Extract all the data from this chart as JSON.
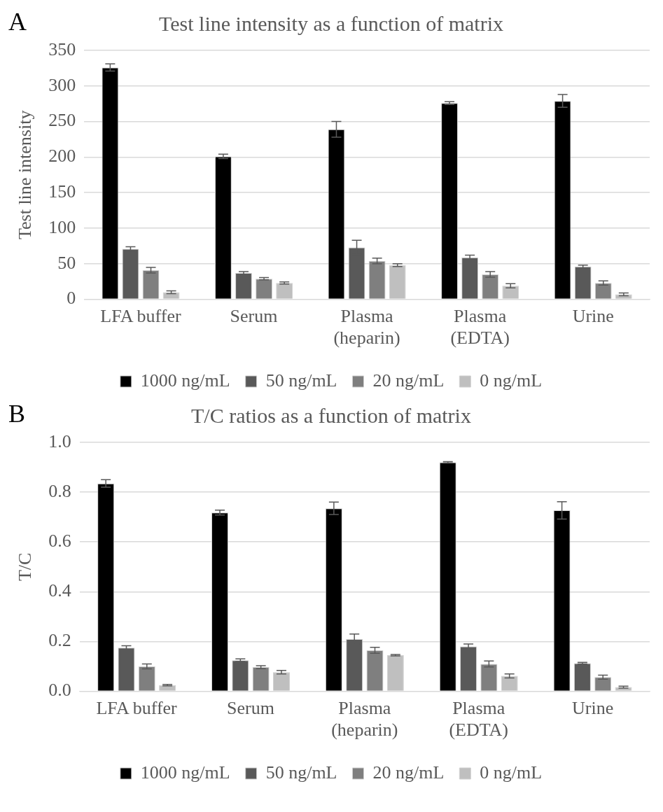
{
  "chart_data": [
    {
      "type": "bar",
      "title": "Test line intensity as a function of matrix",
      "ylabel": "Test line intensity",
      "annotations": [
        "A"
      ],
      "categories": [
        "LFA buffer",
        "Serum",
        "Plasma\n(heparin)",
        "Plasma\n(EDTA)",
        "Urine"
      ],
      "series": [
        {
          "name": "1000 ng/mL",
          "color": "#000000",
          "values": [
            326,
            201,
            239,
            276,
            279
          ],
          "errors": [
            5,
            3,
            11,
            2,
            9
          ]
        },
        {
          "name": "50 ng/mL",
          "color": "#595959",
          "values": [
            71,
            37,
            73,
            59,
            46
          ],
          "errors": [
            3,
            2,
            10,
            3,
            2
          ]
        },
        {
          "name": "20 ng/mL",
          "color": "#7f7f7f",
          "values": [
            41,
            29,
            54,
            35,
            23
          ],
          "errors": [
            4,
            1.5,
            4,
            4,
            3
          ]
        },
        {
          "name": "0 ng/mL",
          "color": "#bfbfbf",
          "values": [
            10,
            23,
            48,
            19,
            7
          ],
          "errors": [
            2,
            1.5,
            2,
            3,
            2
          ]
        }
      ],
      "ylim": [
        0,
        350
      ],
      "yticks": [
        0,
        50,
        100,
        150,
        200,
        250,
        300,
        350
      ],
      "grid": "y",
      "legend": "bottom"
    },
    {
      "type": "bar",
      "title": "T/C ratios as a function of matrix",
      "ylabel": "T/C",
      "annotations": [
        "B"
      ],
      "categories": [
        "LFA buffer",
        "Serum",
        "Plasma\n(heparin)",
        "Plasma\n(EDTA)",
        "Urine"
      ],
      "series": [
        {
          "name": "1000 ng/mL",
          "color": "#000000",
          "values": [
            0.835,
            0.718,
            0.735,
            0.92,
            0.727
          ],
          "errors": [
            0.015,
            0.01,
            0.025,
            0.003,
            0.035
          ]
        },
        {
          "name": "50 ng/mL",
          "color": "#595959",
          "values": [
            0.175,
            0.125,
            0.21,
            0.18,
            0.113
          ],
          "errors": [
            0.008,
            0.005,
            0.02,
            0.01,
            0.003
          ]
        },
        {
          "name": "20 ng/mL",
          "color": "#7f7f7f",
          "values": [
            0.1,
            0.097,
            0.165,
            0.11,
            0.057
          ],
          "errors": [
            0.01,
            0.006,
            0.012,
            0.012,
            0.008
          ]
        },
        {
          "name": "0 ng/mL",
          "color": "#bfbfbf",
          "values": [
            0.025,
            0.077,
            0.145,
            0.062,
            0.017
          ],
          "errors": [
            0.003,
            0.007,
            0.003,
            0.008,
            0.004
          ]
        }
      ],
      "ylim": [
        0,
        1
      ],
      "yticks": [
        {
          "value": 0,
          "label": "0.0"
        },
        {
          "value": 0.2,
          "label": "0.2"
        },
        {
          "value": 0.4,
          "label": "0.4"
        },
        {
          "value": 0.6,
          "label": "0.6"
        },
        {
          "value": 0.8,
          "label": "0.8"
        },
        {
          "value": 1,
          "label": "1.0"
        }
      ],
      "grid": "y",
      "legend": "bottom"
    }
  ]
}
